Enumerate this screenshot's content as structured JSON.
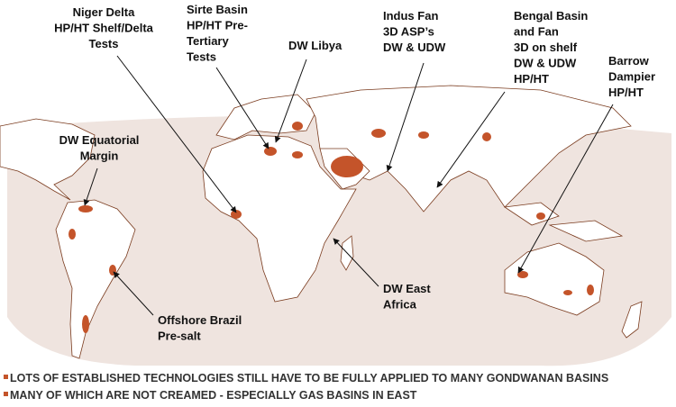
{
  "labels": [
    {
      "lines": [
        "Niger Delta",
        "HP/HT Shelf/Delta",
        "Tests"
      ]
    },
    {
      "lines": [
        "Sirte Basin",
        "HP/HT Pre-",
        "Tertiary",
        "Tests"
      ]
    },
    {
      "lines": [
        "DW Libya"
      ]
    },
    {
      "lines": [
        "Indus Fan",
        "3D ASP’s",
        "DW & UDW"
      ]
    },
    {
      "lines": [
        "Bengal Basin",
        "and Fan",
        "3D on shelf",
        "DW & UDW",
        "HP/HT"
      ]
    },
    {
      "lines": [
        "Barrow",
        "Dampier",
        "HP/HT"
      ]
    },
    {
      "lines": [
        "DW Equatorial",
        "Margin"
      ]
    },
    {
      "lines": [
        "Offshore Brazil",
        "Pre-salt"
      ]
    },
    {
      "lines": [
        "DW East",
        "Africa"
      ]
    }
  ],
  "bullets": [
    "LOTS OF ESTABLISHED TECHNOLOGIES STILL HAVE TO BE FULLY APPLIED TO MANY GONDWANAN BASINS",
    "MANY OF WHICH ARE NOT CREAMED - ESPECIALLY GAS BASINS IN EAST"
  ]
}
